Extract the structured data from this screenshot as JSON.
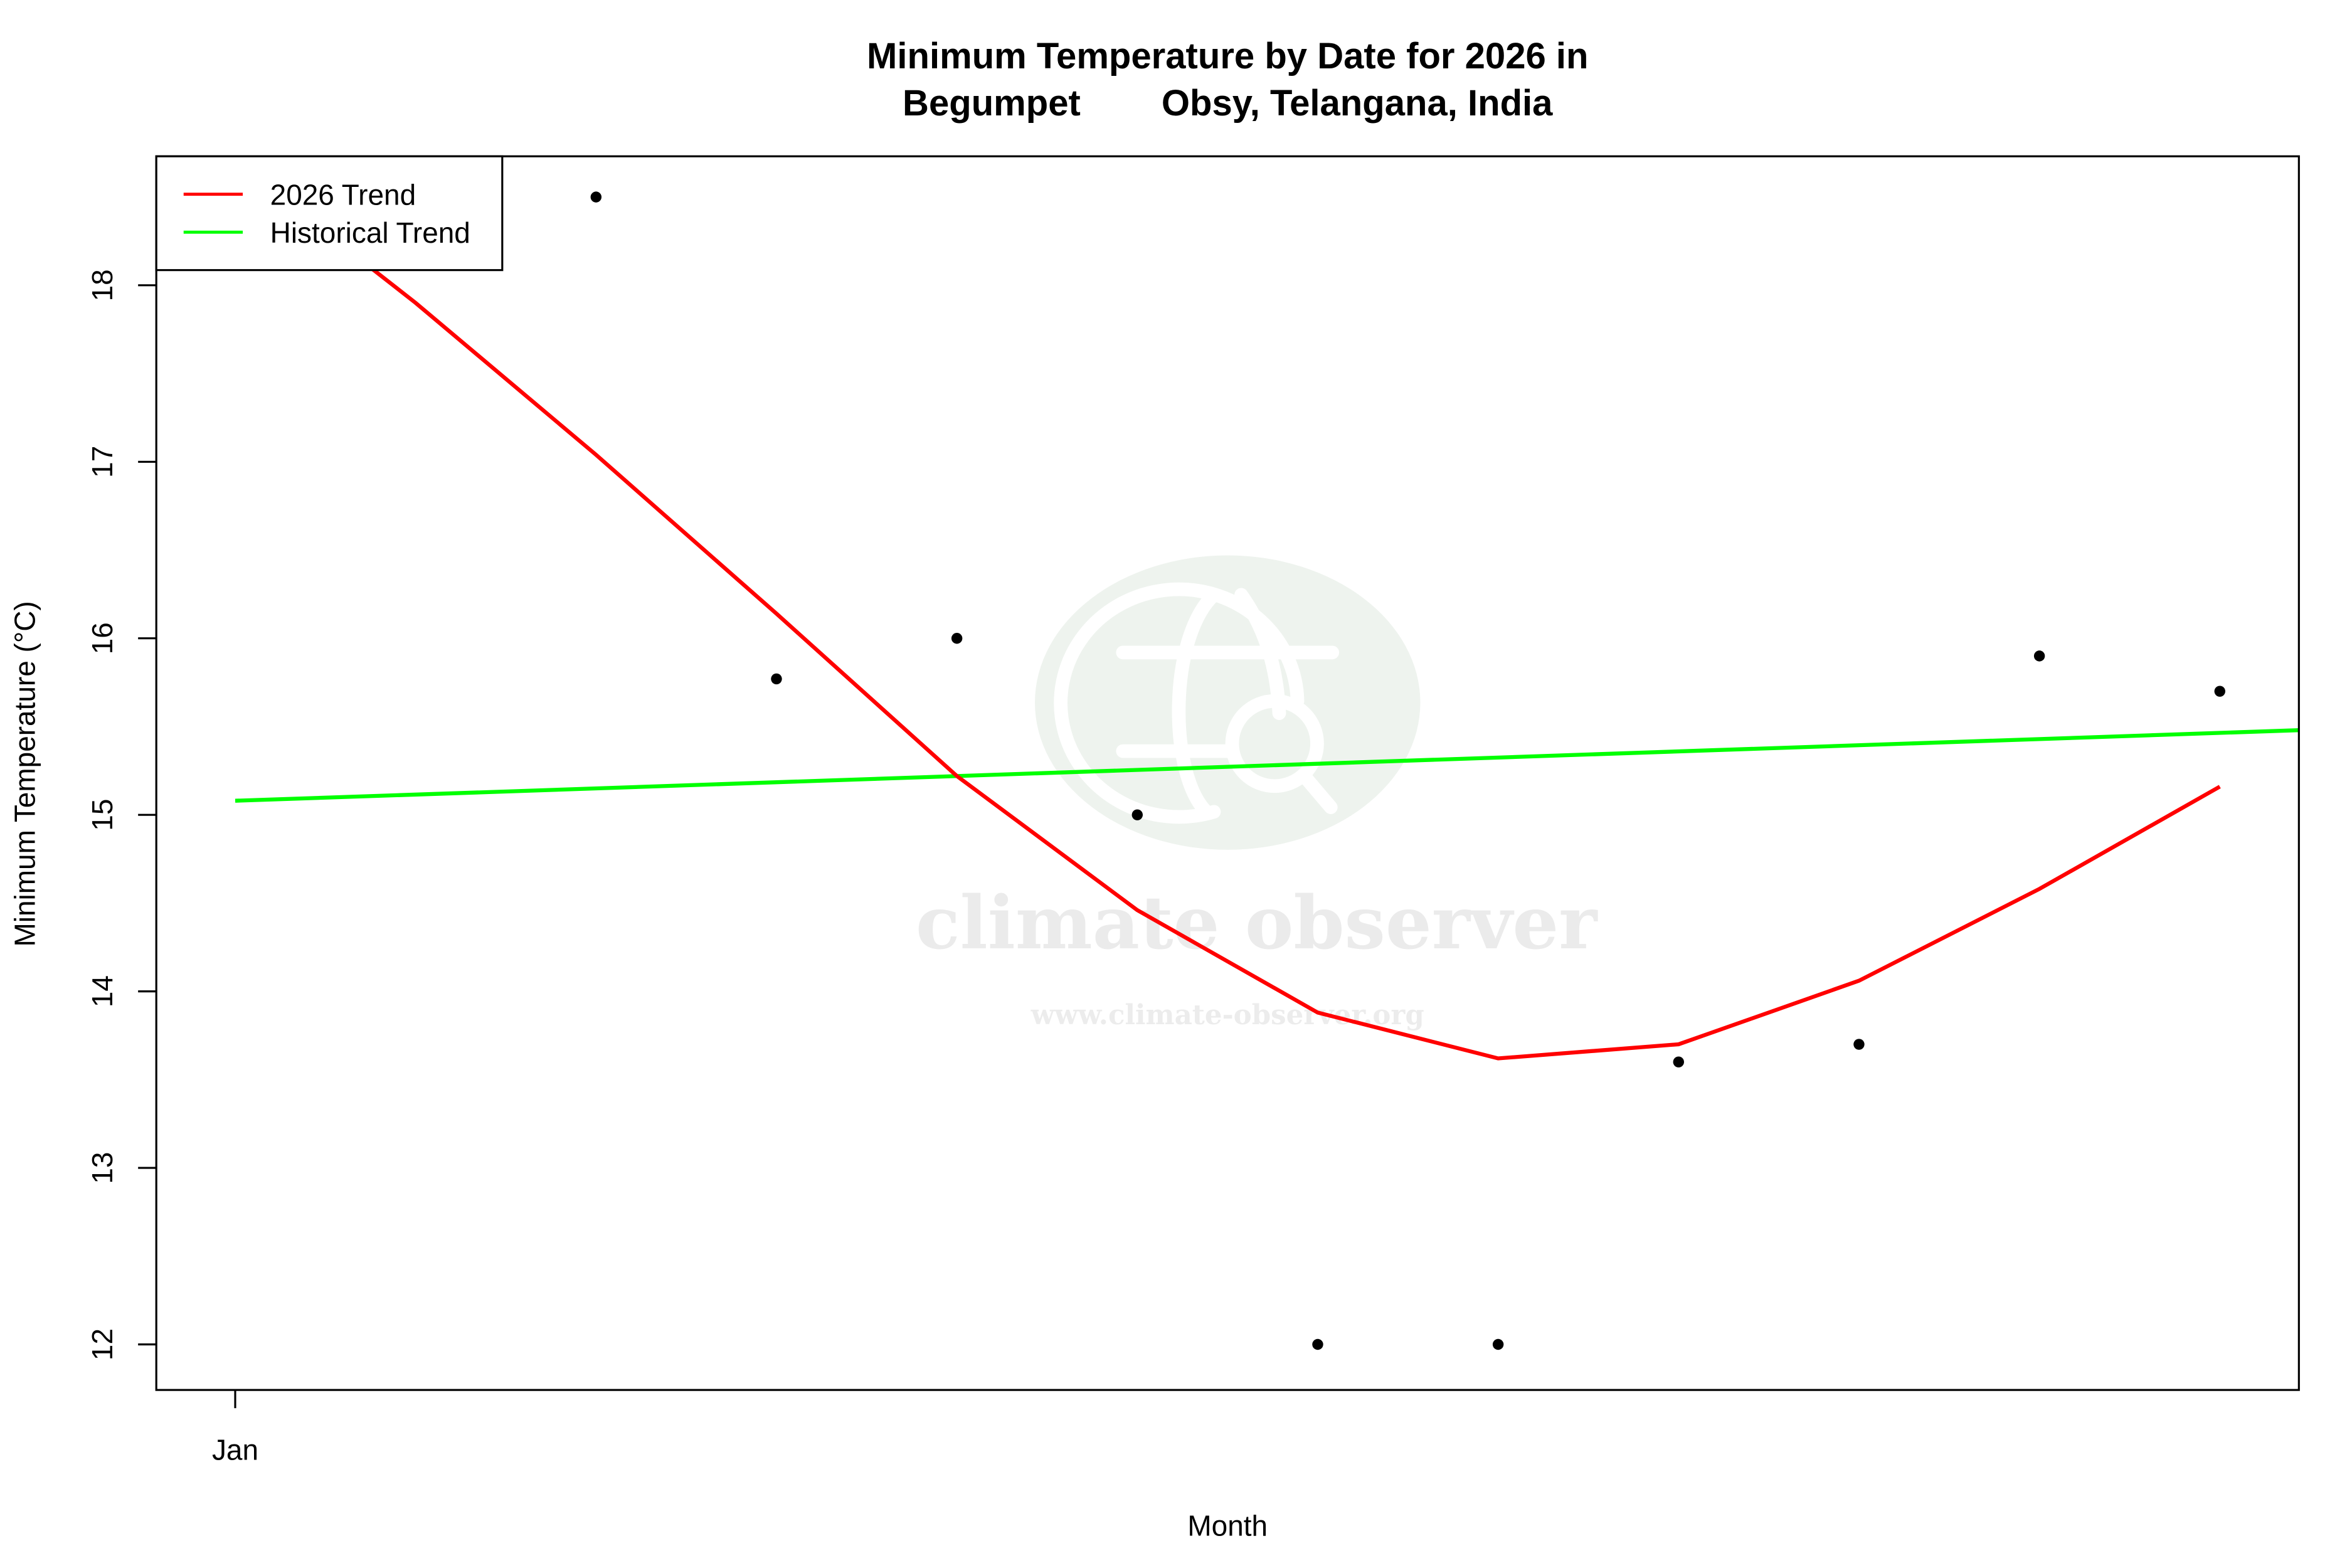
{
  "chart_data": {
    "type": "line",
    "title": "Minimum Temperature by Date for 2026 in",
    "subtitle": "Begumpet        Obsy, Telangana, India",
    "xlabel": "Month",
    "ylabel": "Minimum Temperature (°C)",
    "x_tick_labels": [
      "Jan"
    ],
    "y_ticks": [
      12,
      13,
      14,
      15,
      16,
      17,
      18
    ],
    "ylim": [
      11.75,
      18.75
    ],
    "grid": false,
    "legend": {
      "position": "topleft",
      "entries": [
        {
          "label": "2026 Trend",
          "color": "#ff0000"
        },
        {
          "label": "Historical Trend",
          "color": "#00ff00"
        }
      ]
    },
    "observations": {
      "name": "Daily minimum (points)",
      "color": "#000000",
      "x_index": [
        2,
        3,
        4,
        5,
        6,
        7,
        8,
        9,
        10,
        11
      ],
      "values": [
        18.5,
        15.77,
        16.0,
        15.0,
        12.0,
        12.0,
        13.6,
        13.7,
        15.9,
        15.7
      ]
    },
    "series": [
      {
        "name": "2026 Trend",
        "color": "#ff0000",
        "x_index": [
          0,
          1,
          2,
          3,
          4,
          5,
          6,
          7,
          8,
          9,
          10,
          11
        ],
        "values": [
          18.7,
          17.9,
          17.04,
          16.14,
          15.22,
          14.46,
          13.88,
          13.62,
          13.7,
          14.06,
          14.58,
          15.16
        ]
      },
      {
        "name": "Historical Trend",
        "color": "#00ff00",
        "x_index": [
          0,
          11.45
        ],
        "values": [
          15.08,
          15.48
        ]
      }
    ],
    "watermark": {
      "text": "climate observer",
      "url": "www.climate-observer.org"
    }
  }
}
